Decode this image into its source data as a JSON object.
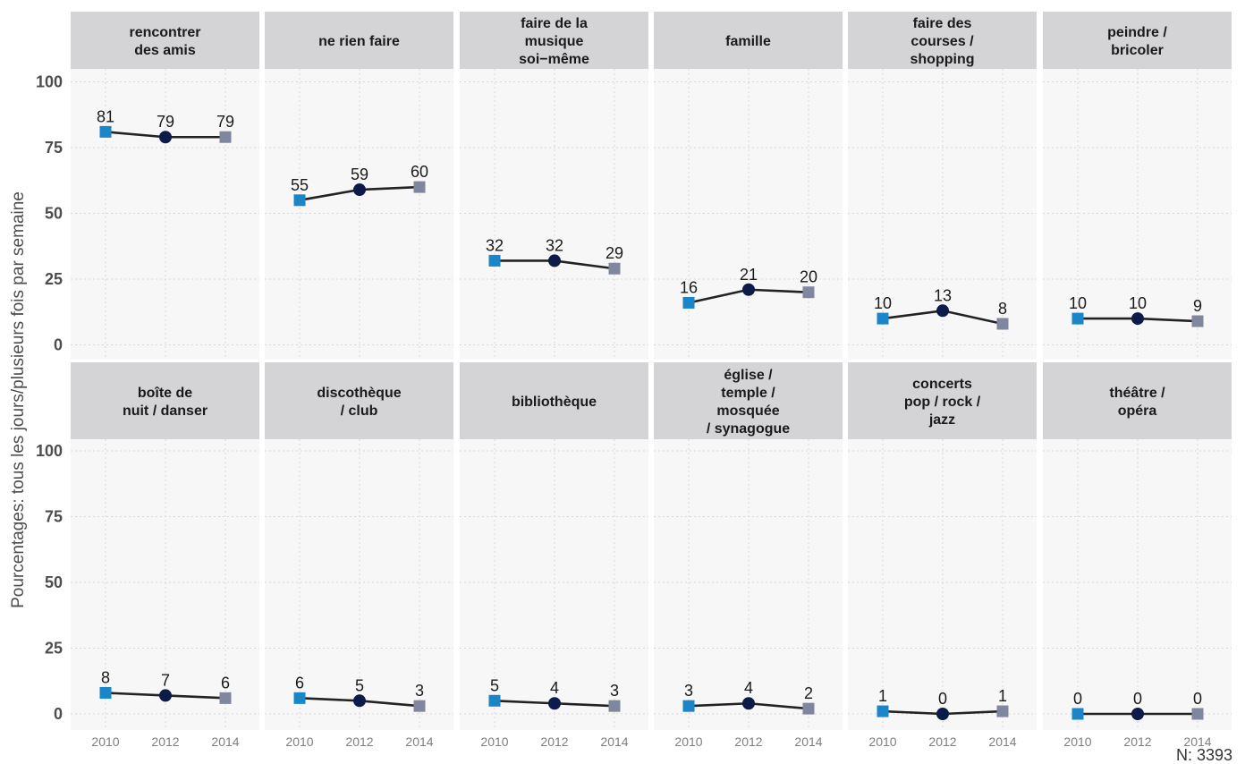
{
  "chart_data": {
    "type": "line",
    "ylabel": "Pourcentages: tous les jours/plusieurs fois par semaine",
    "caption": "N: 3393",
    "x": [
      "2010",
      "2012",
      "2014"
    ],
    "ylim": [
      0,
      100
    ],
    "yticks": [
      "0",
      "25",
      "50",
      "75",
      "100"
    ],
    "grid": true,
    "marker_colors": [
      "#1a86c8",
      "#0d1a4a",
      "#80869e"
    ],
    "marker_shapes": [
      "square",
      "circle",
      "square"
    ],
    "line_color": "#222222",
    "panels": [
      {
        "title_lines": [
          "rencontrer",
          "des amis"
        ],
        "values": [
          81,
          79,
          79
        ]
      },
      {
        "title_lines": [
          "ne rien faire"
        ],
        "values": [
          55,
          59,
          60
        ]
      },
      {
        "title_lines": [
          "faire de la",
          "musique",
          "soi−même"
        ],
        "values": [
          32,
          32,
          29
        ]
      },
      {
        "title_lines": [
          "famille"
        ],
        "values": [
          16,
          21,
          20
        ]
      },
      {
        "title_lines": [
          "faire des",
          "courses /",
          "shopping"
        ],
        "values": [
          10,
          13,
          8
        ]
      },
      {
        "title_lines": [
          "peindre /",
          "bricoler"
        ],
        "values": [
          10,
          10,
          9
        ]
      },
      {
        "title_lines": [
          "boîte de",
          "nuit / danser"
        ],
        "values": [
          8,
          7,
          6
        ]
      },
      {
        "title_lines": [
          "discothèque",
          "/ club"
        ],
        "values": [
          6,
          5,
          3
        ]
      },
      {
        "title_lines": [
          "bibliothèque"
        ],
        "values": [
          5,
          4,
          3
        ]
      },
      {
        "title_lines": [
          "église /",
          "temple /",
          "mosquée",
          "/ synagogue"
        ],
        "values": [
          3,
          4,
          2
        ]
      },
      {
        "title_lines": [
          "concerts",
          "pop / rock /",
          "jazz"
        ],
        "values": [
          1,
          0,
          1
        ]
      },
      {
        "title_lines": [
          "théâtre /",
          "opéra"
        ],
        "values": [
          0,
          0,
          0
        ]
      }
    ]
  }
}
